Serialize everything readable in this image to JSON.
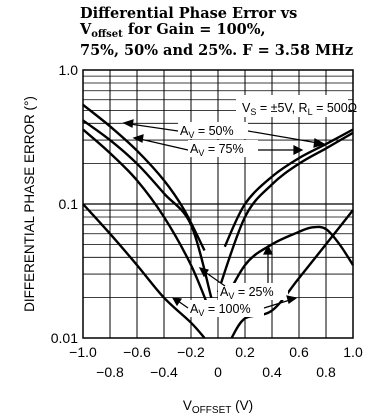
{
  "title_line1": "Differential Phase Error vs",
  "title_line2_prefix": "V",
  "title_line2_sub": "offset",
  "title_line2_suffix": " for Gain = 100%,",
  "title_line3": "75%, 50% and 25%. F = 3.58 MHz",
  "chart_data": {
    "type": "line",
    "xlabel_main": "V",
    "xlabel_sub": "OFFSET",
    "xlabel_unit": " (V)",
    "ylabel": "DIFFERENTIAL PHASE ERROR (°)",
    "xlim": [
      -1.0,
      1.0
    ],
    "ylim": [
      0.01,
      1.0
    ],
    "y_scale": "log",
    "grid": true,
    "x_ticks_top": [
      "-1.0",
      "-0.6",
      "-0.2",
      "0.2",
      "0.6",
      "1.0"
    ],
    "x_tick_values_top": [
      -1.0,
      -0.6,
      -0.2,
      0.2,
      0.6,
      1.0
    ],
    "x_ticks_bottom": [
      "-0.8",
      "-0.4",
      "0",
      "0.4",
      "0.8"
    ],
    "x_tick_values_bottom": [
      -0.8,
      -0.4,
      0,
      0.4,
      0.8
    ],
    "y_ticks": [
      "1.0",
      "0.1",
      "0.01"
    ],
    "y_tick_values": [
      1.0,
      0.1,
      0.01
    ],
    "conditions": {
      "vs": "V",
      "vs_sub": "S",
      "vs_val": " = ±5V, R",
      "rl_sub": "L",
      "rl_val": " = 500Ω"
    },
    "series": [
      {
        "name": "A_V = 50%",
        "label_main": "A",
        "label_sub": "V",
        "label_val": " = 50%",
        "segments": [
          {
            "x": [
              -1.0,
              -0.8,
              -0.6,
              -0.4,
              -0.25,
              -0.1
            ],
            "y": [
              0.55,
              0.38,
              0.25,
              0.15,
              0.09,
              0.045
            ]
          },
          {
            "x": [
              0.05,
              0.2,
              0.4,
              0.6,
              0.8,
              1.0
            ],
            "y": [
              0.048,
              0.1,
              0.16,
              0.22,
              0.28,
              0.36
            ]
          }
        ]
      },
      {
        "name": "A_V = 75%",
        "label_main": "A",
        "label_sub": "V",
        "label_val": " = 75%",
        "segments": [
          {
            "x": [
              -1.0,
              -0.8,
              -0.6,
              -0.4,
              -0.2,
              -0.05
            ],
            "y": [
              0.42,
              0.3,
              0.2,
              0.12,
              0.07,
              0.02
            ]
          },
          {
            "x": [
              0.0,
              0.2,
              0.4,
              0.6,
              0.8,
              1.0
            ],
            "y": [
              0.022,
              0.08,
              0.14,
              0.2,
              0.26,
              0.34
            ]
          }
        ]
      },
      {
        "name": "A_V = 100%",
        "label_main": "A",
        "label_sub": "V",
        "label_val": " = 100%",
        "segments": [
          {
            "x": [
              -1.0,
              -0.8,
              -0.6,
              -0.4,
              -0.2,
              -0.1
            ],
            "y": [
              0.1,
              0.06,
              0.035,
              0.02,
              0.013,
              0.01
            ]
          },
          {
            "x": [
              0.1,
              0.2,
              0.4,
              0.6,
              0.8,
              1.0
            ],
            "y": [
              0.01,
              0.014,
              0.016,
              0.028,
              0.05,
              0.09
            ]
          }
        ]
      },
      {
        "name": "A_V = 25%",
        "label_main": "A",
        "label_sub": "V",
        "label_val": " = 25%",
        "segments": [
          {
            "x": [
              -1.0,
              -0.8,
              -0.6,
              -0.4,
              -0.2,
              -0.05
            ],
            "y": [
              0.36,
              0.24,
              0.15,
              0.08,
              0.035,
              0.015
            ]
          },
          {
            "x": [
              0.0,
              0.2,
              0.4,
              0.6,
              0.7,
              0.8,
              0.9,
              1.0
            ],
            "y": [
              0.015,
              0.035,
              0.05,
              0.062,
              0.067,
              0.065,
              0.05,
              0.035
            ]
          }
        ]
      }
    ]
  }
}
